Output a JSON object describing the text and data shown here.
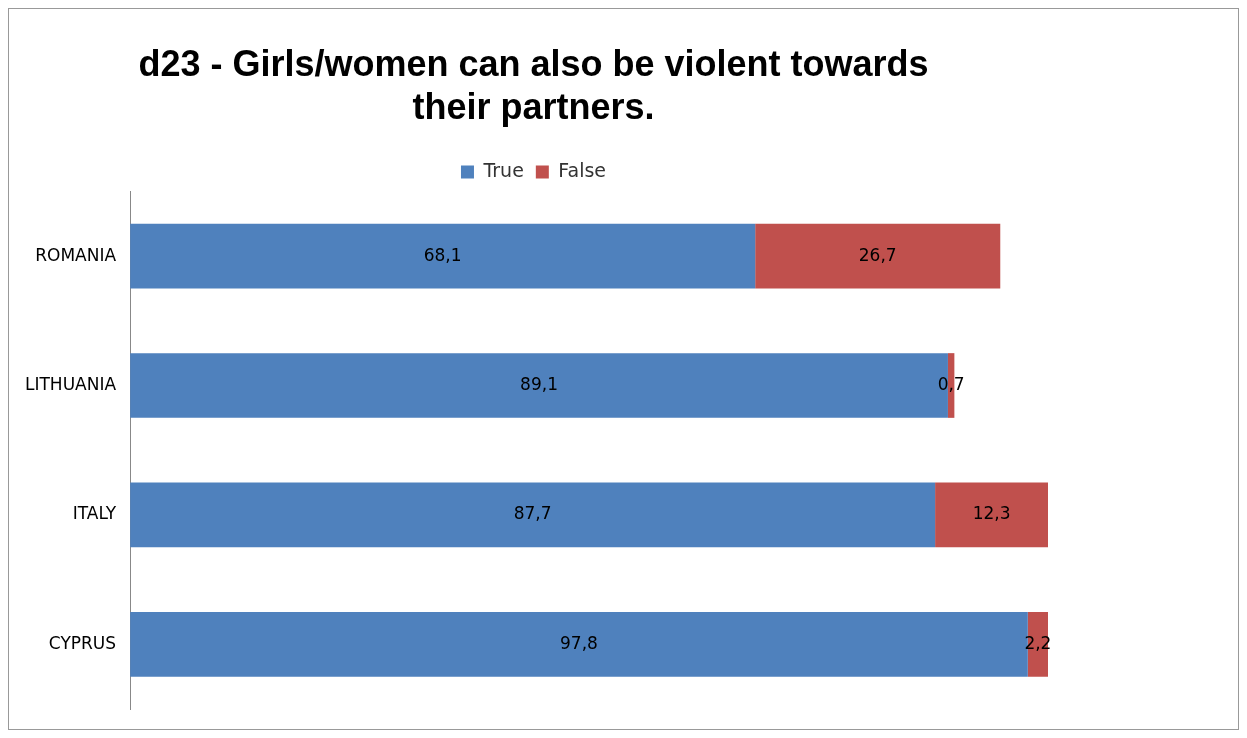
{
  "chart_data": {
    "type": "bar",
    "orientation": "horizontal",
    "stacked": true,
    "title": "d23 - Girls/women can also be violent towards their partners.",
    "categories": [
      "ROMANIA",
      "LITHUANIA",
      "ITALY",
      "CYPRUS"
    ],
    "legend": "top",
    "series": [
      {
        "name": "True",
        "color": "#4f81bd",
        "values": [
          68.1,
          89.1,
          87.7,
          97.8
        ],
        "value_labels": [
          "68,1",
          "89,1",
          "87,7",
          "97,8"
        ]
      },
      {
        "name": "False",
        "color": "#c0504d",
        "values": [
          26.7,
          0.7,
          12.3,
          2.2
        ],
        "value_labels": [
          "26,7",
          "0,7",
          "12,3",
          "2,2"
        ]
      }
    ]
  }
}
